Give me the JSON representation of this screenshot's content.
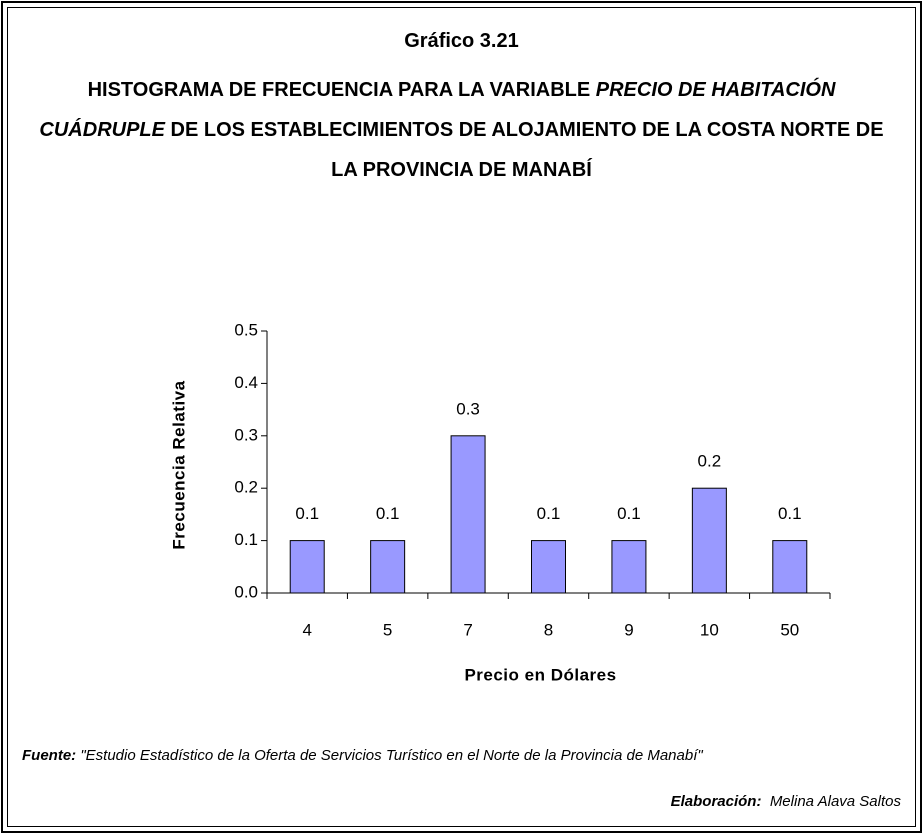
{
  "chart_data": {
    "type": "bar",
    "title": "Gráfico 3.21",
    "subtitle": [
      {
        "text": "HISTOGRAMA DE FRECUENCIA PARA LA VARIABLE "
      },
      {
        "text": "PRECIO DE HABITACIÓN CUÁDRUPLE",
        "italic": true
      },
      {
        "text": " DE LOS ESTABLECIMIENTOS DE ALOJAMIENTO DE LA COSTA NORTE DE LA PROVINCIA DE MANABÍ"
      }
    ],
    "x_label": "Precio en Dólares",
    "y_label": "Frecuencia Relativa",
    "categories": [
      "4",
      "5",
      "7",
      "8",
      "9",
      "10",
      "50"
    ],
    "values": [
      0.1,
      0.1,
      0.3,
      0.1,
      0.1,
      0.2,
      0.1
    ],
    "color": "#9999ff",
    "ylim": [
      0,
      0.5
    ],
    "yticks": [
      {
        "value": 0,
        "label": "0.0"
      },
      0.1,
      0.2,
      0.3,
      0.4,
      0.5
    ],
    "grid": false,
    "source": {
      "label": "Fuente:",
      "text": "\"Estudio Estadístico de la Oferta de Servicios Turístico en el Norte de la Provincia de Manabí\""
    },
    "credit": {
      "label": "Elaboración:",
      "text": "Melina Alava Saltos"
    }
  }
}
